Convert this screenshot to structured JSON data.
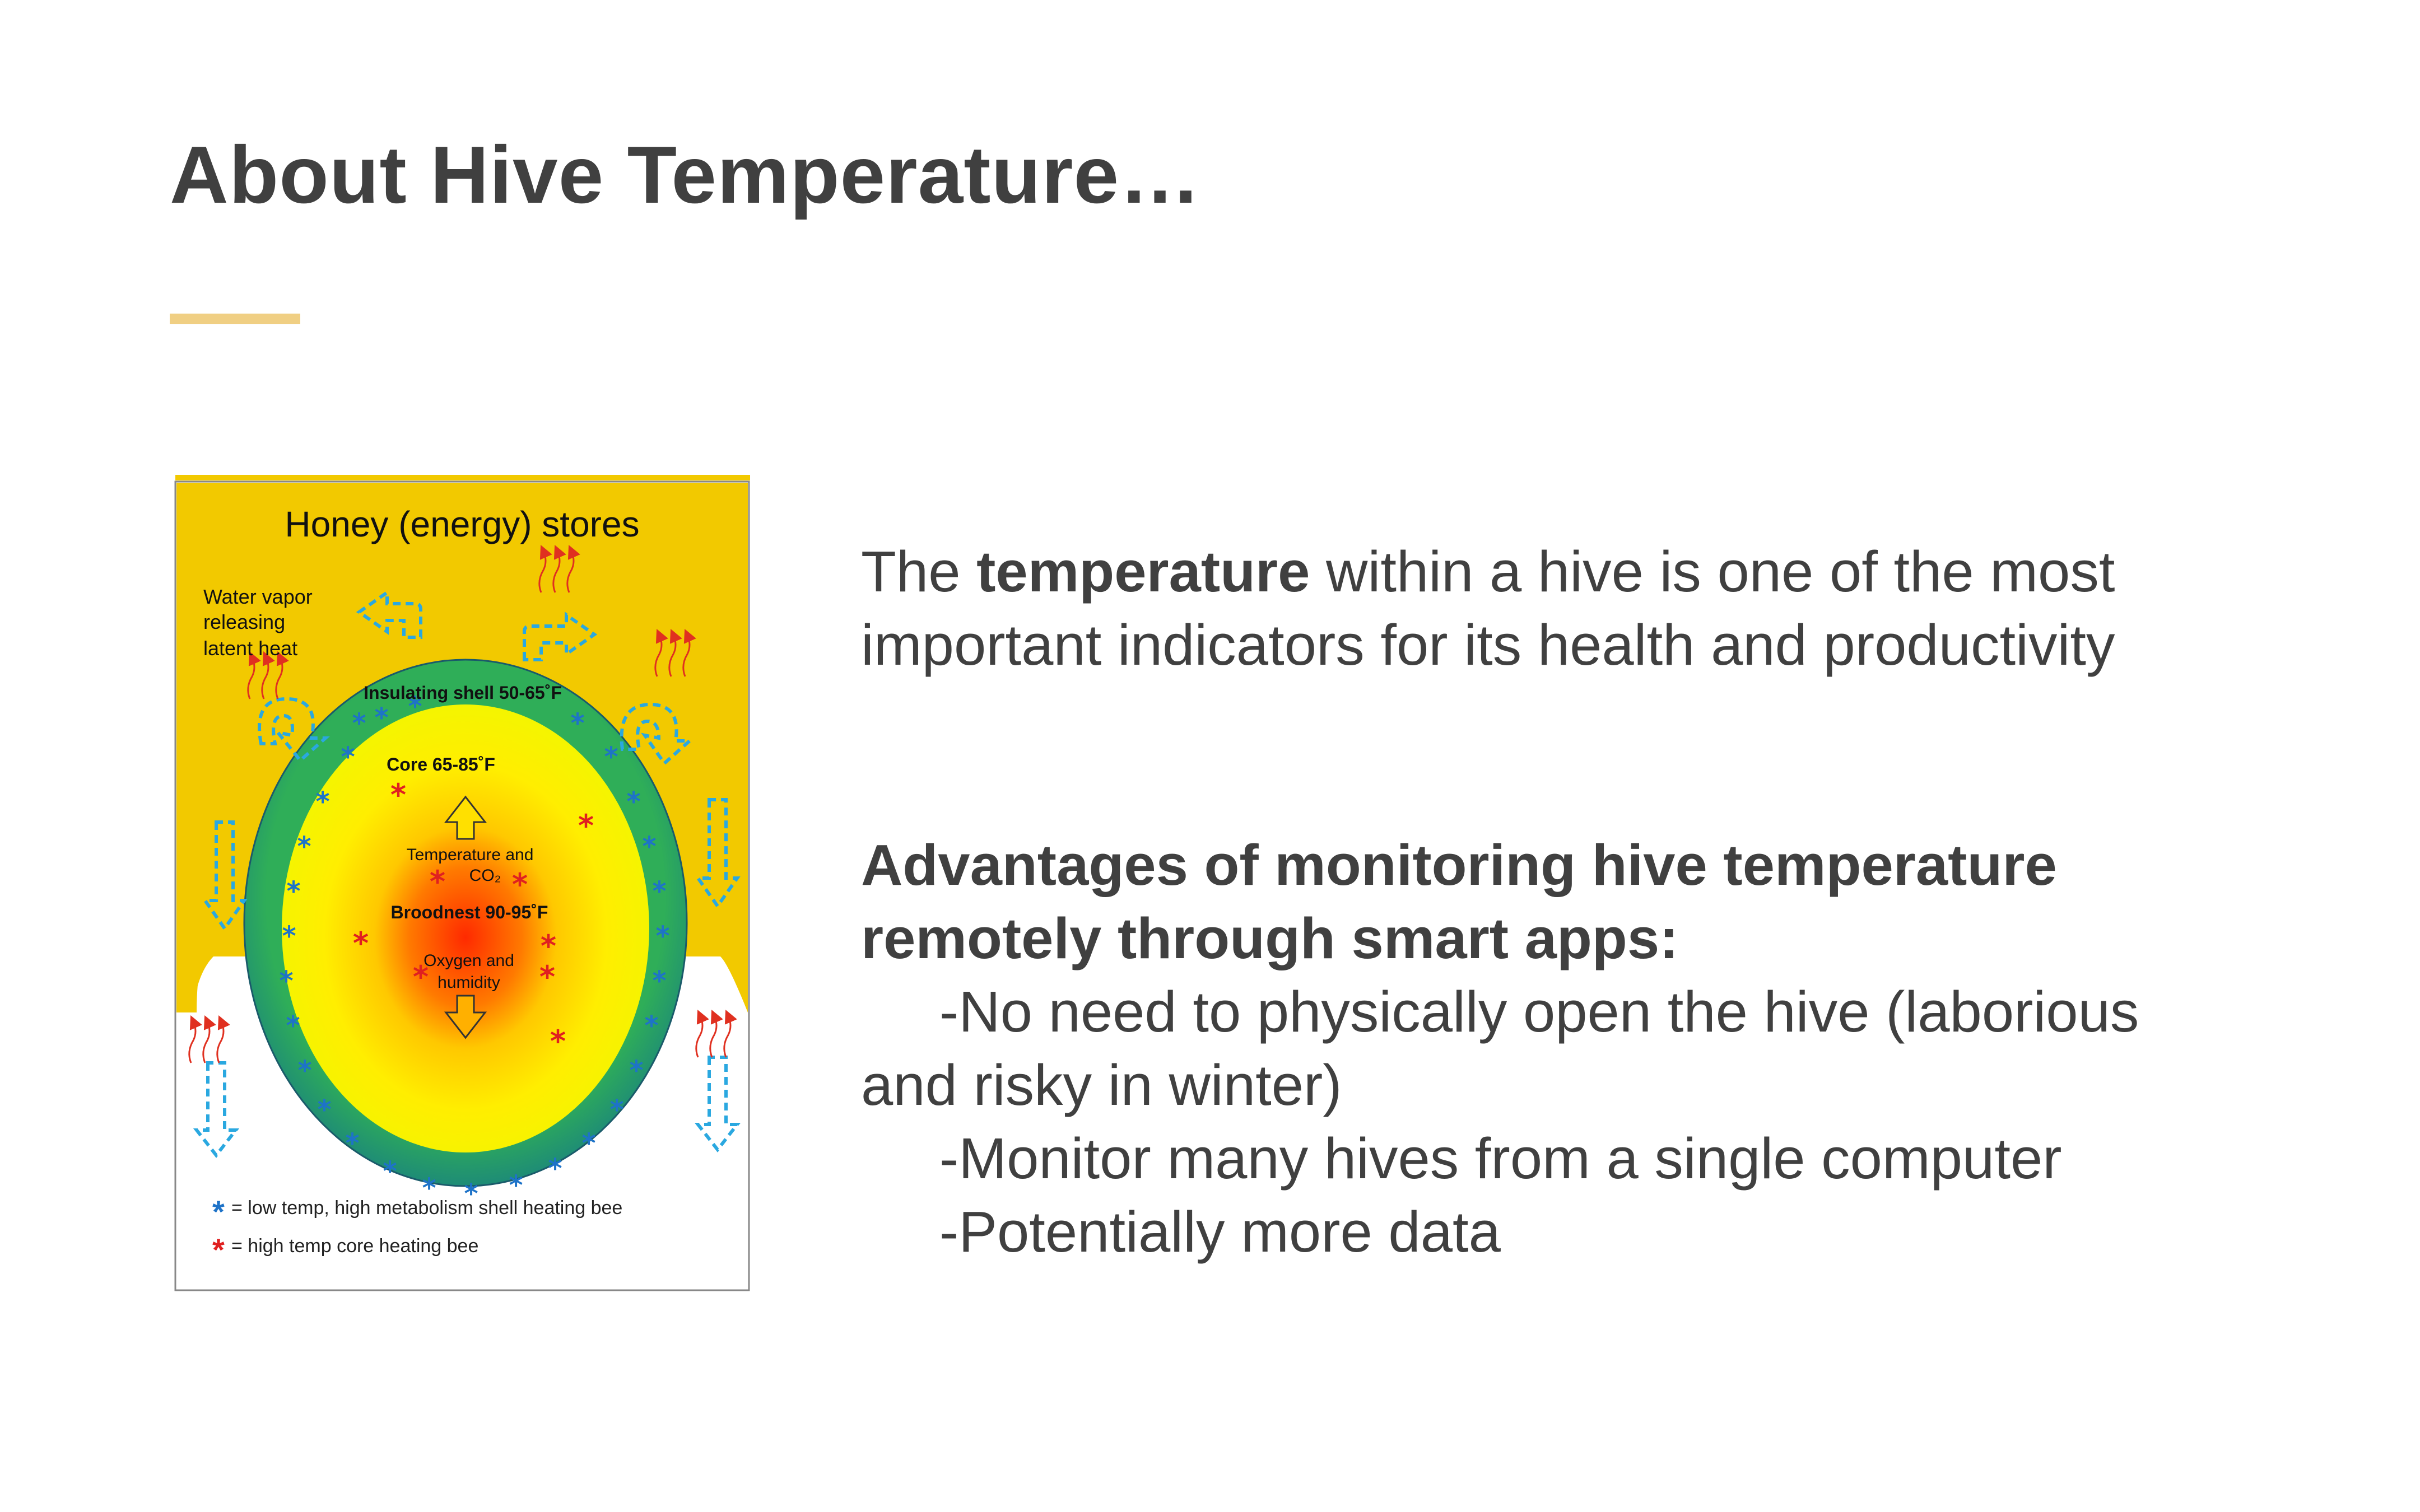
{
  "slide": {
    "title": "About Hive Temperature…",
    "intro_before": "The ",
    "intro_bold": "temperature",
    "intro_after": " within a hive is one of the most important indicators for its health and productivity",
    "advantages_heading": "Advantages of monitoring hive temperature remotely through smart apps:",
    "advantage_1_line1": "-No need to physically open the hive (laborious",
    "advantage_1_line2": "and risky in winter)",
    "advantage_2": "-Monitor many hives from a single computer",
    "advantage_3": "-Potentially more data"
  },
  "figure": {
    "honey_stores": "Honey (energy) stores",
    "water_vapor_1": "Water vapor",
    "water_vapor_2": "releasing",
    "water_vapor_3": "latent heat",
    "insulating_shell": "Insulating shell 50-65˚F",
    "core": "Core 65-85˚F",
    "temp_co2_1": "Temperature and",
    "temp_co2_2": "CO₂",
    "broodnest": "Broodnest 90-95˚F",
    "oxygen_1": "Oxygen and",
    "oxygen_2": "humidity",
    "legend_blue": "= low temp, high metabolism shell heating bee",
    "legend_red": "= high temp core heating bee",
    "colors": {
      "honey": "#f2c900",
      "shell": "#2a9a5e",
      "core": "#ffee00",
      "brood": "#ff3300",
      "blue_star": "#1e73c8",
      "red_star": "#e02020",
      "air_arrow": "#2aa8e0"
    }
  }
}
